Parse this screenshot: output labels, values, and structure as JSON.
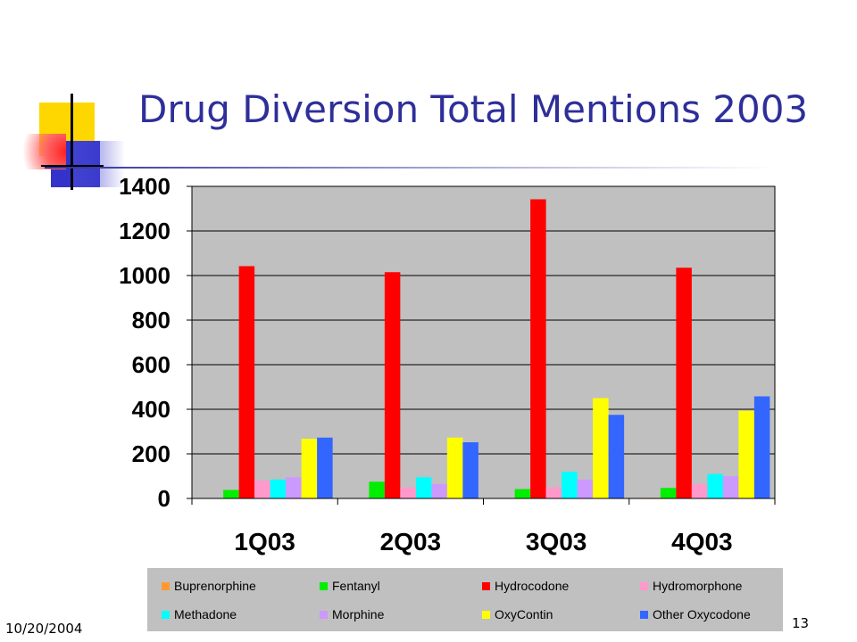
{
  "slide": {
    "title": "Drug Diversion Total Mentions 2003",
    "footer_date": "10/20/2004",
    "page_number": "13"
  },
  "colors": {
    "title": "#2e2f99",
    "plot_background": "#c0c0c0",
    "legend_background": "#c0c0c0"
  },
  "chart_data": {
    "type": "bar",
    "title": "Drug Diversion Total Mentions 2003",
    "xlabel": "",
    "ylabel": "",
    "categories": [
      "1Q03",
      "2Q03",
      "3Q03",
      "4Q03"
    ],
    "ylim": [
      0,
      1400
    ],
    "yticks": [
      0,
      200,
      400,
      600,
      800,
      1000,
      1200,
      1400
    ],
    "grid": true,
    "legend_position": "bottom",
    "series": [
      {
        "name": "Buprenorphine",
        "color": "#ff9933",
        "values": [
          0,
          0,
          0,
          3
        ]
      },
      {
        "name": "Fentanyl",
        "color": "#00ee00",
        "values": [
          38,
          75,
          42,
          47
        ]
      },
      {
        "name": "Hydrocodone",
        "color": "#ff0000",
        "values": [
          1042,
          1015,
          1342,
          1035
        ]
      },
      {
        "name": "Hydromorphone",
        "color": "#ff99cc",
        "values": [
          80,
          50,
          50,
          65
        ]
      },
      {
        "name": "Methadone",
        "color": "#00ffff",
        "values": [
          85,
          95,
          120,
          110
        ]
      },
      {
        "name": "Morphine",
        "color": "#cc99ff",
        "values": [
          95,
          65,
          85,
          100
        ]
      },
      {
        "name": "OxyContin",
        "color": "#ffff00",
        "values": [
          268,
          273,
          450,
          393
        ]
      },
      {
        "name": "Other Oxycodone",
        "color": "#3366ff",
        "values": [
          273,
          252,
          375,
          458
        ]
      }
    ]
  }
}
